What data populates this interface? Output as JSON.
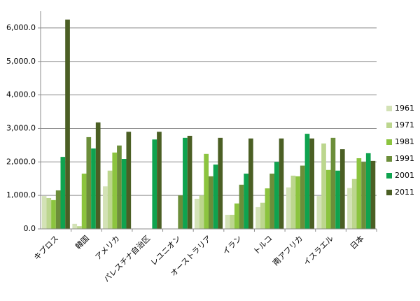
{
  "chart_data": {
    "type": "bar",
    "categories": [
      "キプロス",
      "韓国",
      "アメリカ",
      "パレスチナ自治区",
      "レユニオン",
      "オーストラリア",
      "イラン",
      "トルコ",
      "南アフリカ",
      "イスラエル",
      "日本"
    ],
    "series": [
      {
        "name": "1961",
        "color": "#d3e2b6",
        "values": [
          980,
          150,
          1270,
          null,
          null,
          900,
          420,
          650,
          1240,
          980,
          1220
        ]
      },
      {
        "name": "1971",
        "color": "#bcd68e",
        "values": [
          920,
          80,
          1740,
          null,
          null,
          1000,
          420,
          780,
          1590,
          2550,
          1490
        ]
      },
      {
        "name": "1981",
        "color": "#8cc43f",
        "values": [
          860,
          1650,
          2280,
          null,
          null,
          2240,
          760,
          1210,
          1570,
          1760,
          2110
        ]
      },
      {
        "name": "1991",
        "color": "#6c8e3a",
        "values": [
          1150,
          2740,
          2490,
          null,
          1000,
          1570,
          1320,
          1650,
          1890,
          2720,
          2000
        ]
      },
      {
        "name": "2001",
        "color": "#0fa34f",
        "values": [
          2150,
          2400,
          2090,
          2670,
          2720,
          1920,
          1650,
          2000,
          2840,
          1740,
          2260
        ]
      },
      {
        "name": "2011",
        "color": "#4b5f24",
        "values": [
          6250,
          3180,
          2900,
          2900,
          2780,
          2720,
          2700,
          2700,
          2700,
          2380,
          2030
        ]
      }
    ],
    "ylim": [
      0,
      6500
    ],
    "yticks": [
      {
        "value": 0,
        "label": "0.0"
      },
      {
        "value": 1000,
        "label": "1,000.0"
      },
      {
        "value": 2000,
        "label": "2,000.0"
      },
      {
        "value": 3000,
        "label": "3,000.0"
      },
      {
        "value": 4000,
        "label": "4,000.0"
      },
      {
        "value": 5000,
        "label": "5,000.0"
      },
      {
        "value": 6000,
        "label": "6,000.0"
      }
    ],
    "grid": true,
    "legend": "right"
  }
}
